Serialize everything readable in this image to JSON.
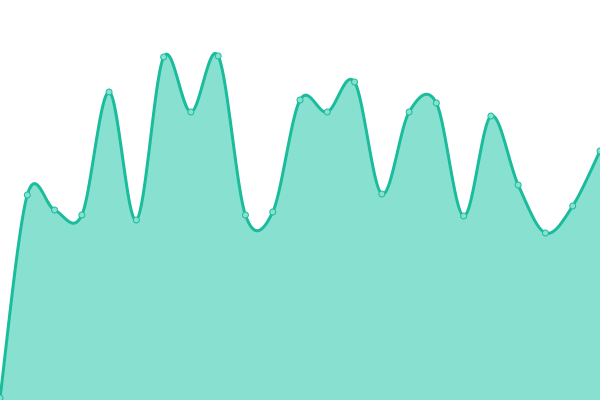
{
  "chart_data": {
    "type": "area",
    "title": "",
    "xlabel": "",
    "ylabel": "",
    "x": [
      0,
      1,
      2,
      3,
      4,
      5,
      6,
      7,
      8,
      9,
      10,
      11,
      12,
      13,
      14,
      15,
      16,
      17,
      18,
      19,
      20,
      21,
      22
    ],
    "values": [
      2,
      205,
      190,
      185,
      308,
      180,
      343,
      288,
      344,
      185,
      188,
      300,
      288,
      318,
      206,
      288,
      297,
      184,
      284,
      215,
      167,
      194,
      249
    ],
    "ylim": [
      0,
      400
    ],
    "grid": false,
    "axes_visible": false,
    "smooth": true,
    "markers": true,
    "colors": {
      "line": "#1abc9c",
      "fill": "#88e0d0",
      "marker_fill": "#88e0d0"
    }
  }
}
